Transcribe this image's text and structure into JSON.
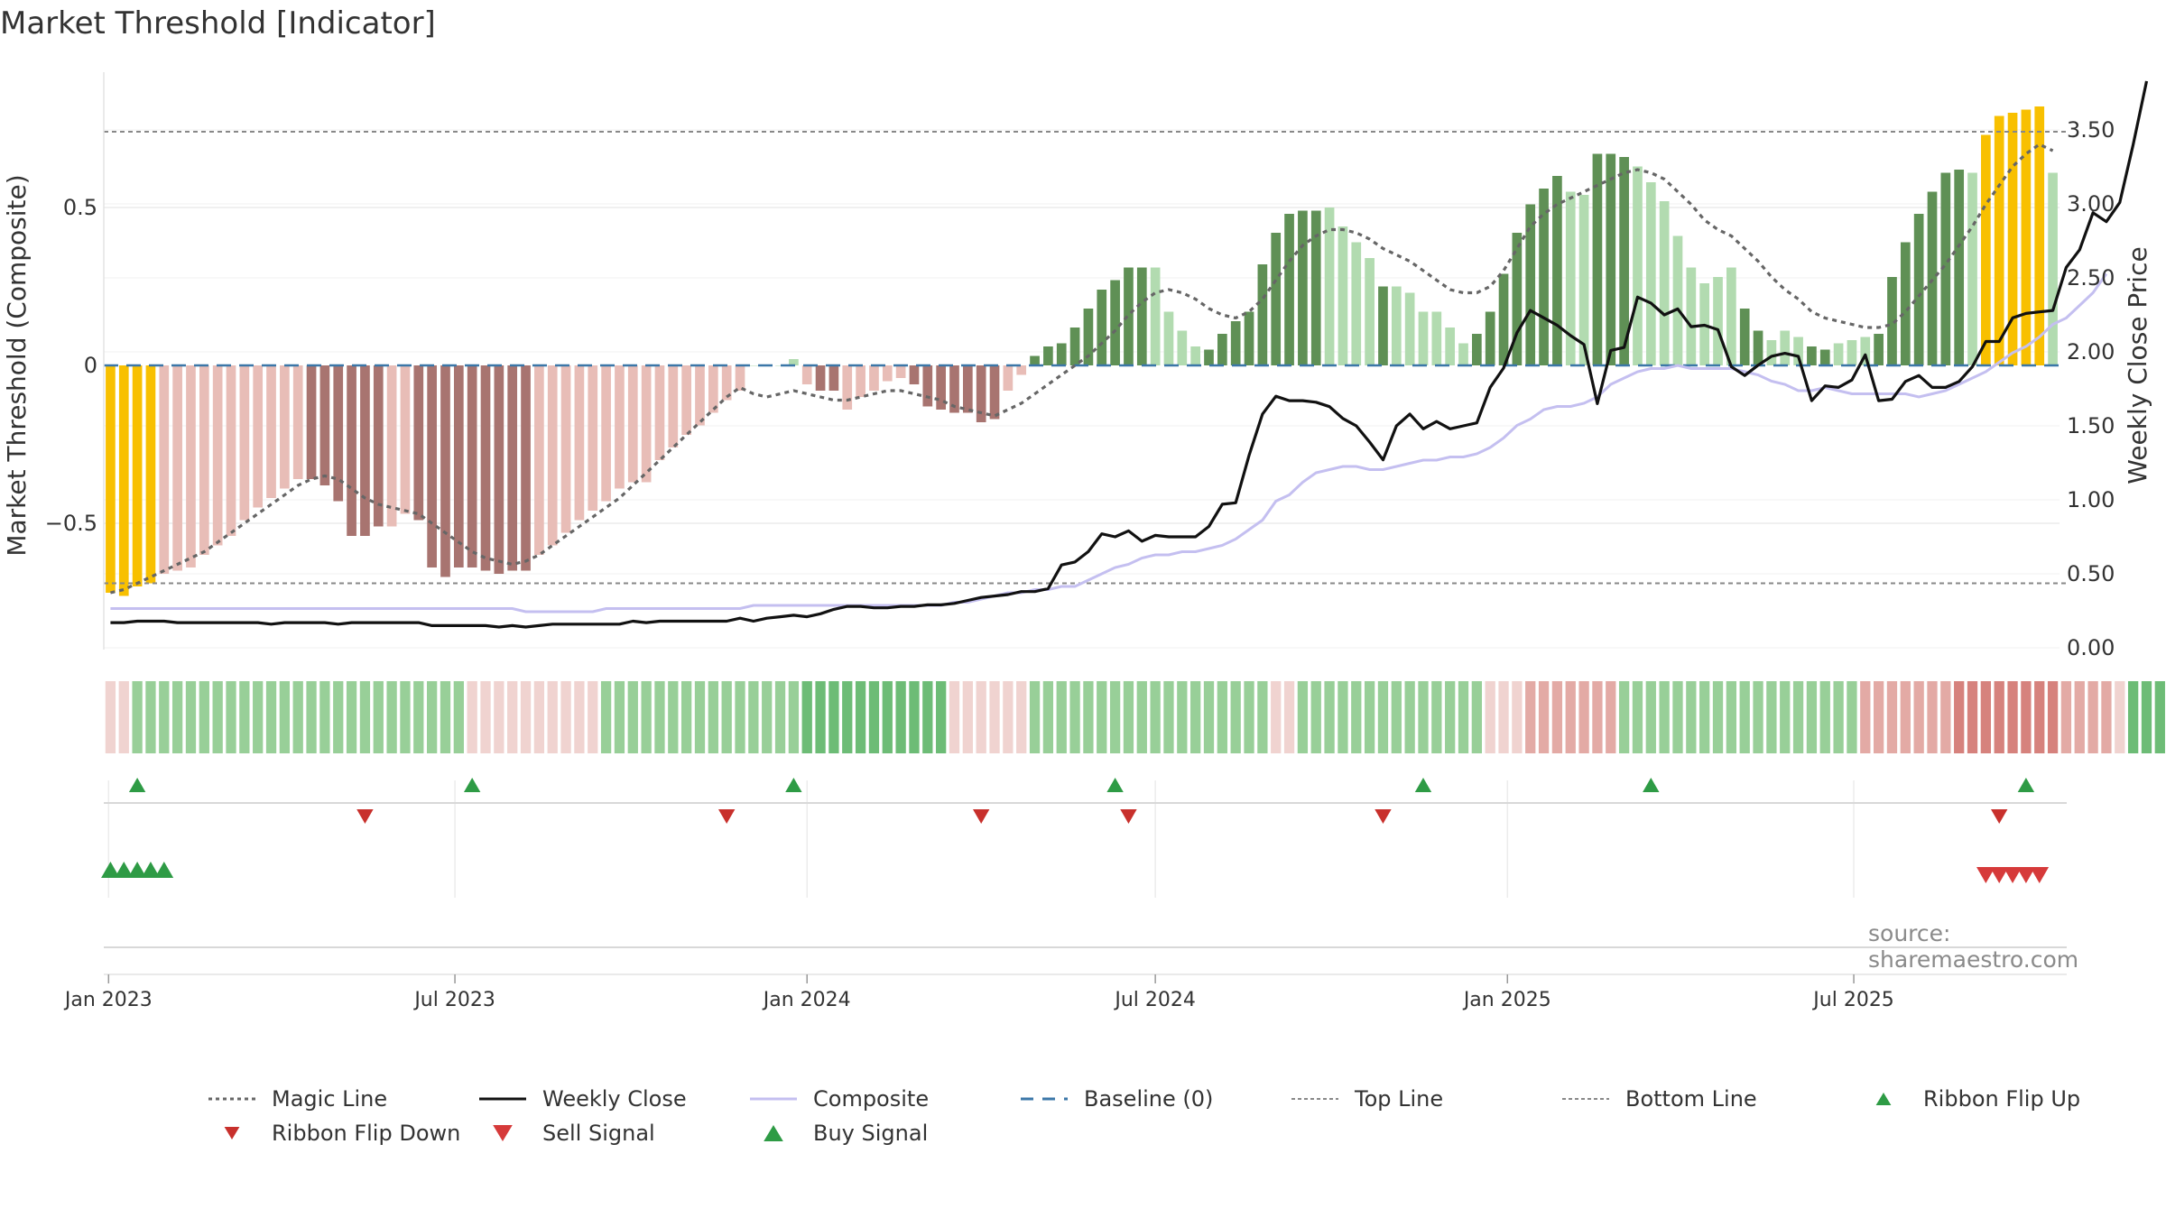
{
  "header": {
    "title": "Market Threshold [Indicator]"
  },
  "source_note": "source: sharemaestro.com",
  "colors": {
    "bar_neg_light": "#e8bdb7",
    "bar_neg_dark": "#a87470",
    "bar_pos_light": "#b2dbb0",
    "bar_pos_dark": "#5f9055",
    "bar_extreme": "#f8c000",
    "magic": "#666666",
    "close": "#111111",
    "composite": "#c4bff0",
    "baseline": "#3b77a8",
    "guide": "#888888",
    "buy": "#2e9b45",
    "sell": "#d63a3a",
    "flip_down": "#c8302c"
  },
  "chart_data": {
    "type": "bar",
    "title": "Market Threshold [Indicator]",
    "x_axis": {
      "ticks": [
        "Jan 2023",
        "Jul 2023",
        "Jan 2024",
        "Jul 2024",
        "Jan 2025",
        "Jul 2025"
      ]
    },
    "y_left": {
      "label": "Market Threshold (Composite)",
      "ticks": [
        "0.5",
        "0",
        "−0.5"
      ],
      "range": [
        -0.89,
        0.92
      ]
    },
    "y_right": {
      "label": "Weekly Close Price",
      "ticks": [
        "3.50",
        "3.00",
        "2.50",
        "2.00",
        "1.50",
        "1.00",
        "0.50",
        "0.00"
      ],
      "range": [
        0,
        3.85
      ]
    },
    "start_date": "2023-01-02",
    "top_line": 0.74,
    "bottom_line": -0.69,
    "baseline": 0,
    "composite_bars": [
      -0.72,
      -0.73,
      -0.7,
      -0.69,
      -0.66,
      -0.65,
      -0.64,
      -0.6,
      -0.57,
      -0.54,
      -0.49,
      -0.45,
      -0.42,
      -0.39,
      -0.36,
      -0.36,
      -0.38,
      -0.43,
      -0.54,
      -0.54,
      -0.51,
      -0.51,
      -0.47,
      -0.49,
      -0.64,
      -0.67,
      -0.64,
      -0.64,
      -0.65,
      -0.66,
      -0.65,
      -0.65,
      -0.6,
      -0.57,
      -0.53,
      -0.49,
      -0.46,
      -0.43,
      -0.39,
      -0.37,
      -0.37,
      -0.3,
      -0.26,
      -0.22,
      -0.19,
      -0.15,
      -0.11,
      -0.08,
      0,
      0,
      0,
      0.02,
      -0.06,
      -0.08,
      -0.08,
      -0.14,
      -0.1,
      -0.08,
      -0.05,
      -0.04,
      -0.06,
      -0.13,
      -0.14,
      -0.15,
      -0.15,
      -0.18,
      -0.17,
      -0.08,
      -0.03,
      0.03,
      0.06,
      0.07,
      0.12,
      0.18,
      0.24,
      0.27,
      0.31,
      0.31,
      0.31,
      0.17,
      0.11,
      0.06,
      0.05,
      0.1,
      0.14,
      0.17,
      0.32,
      0.42,
      0.48,
      0.49,
      0.49,
      0.5,
      0.44,
      0.39,
      0.34,
      0.25,
      0.25,
      0.23,
      0.17,
      0.17,
      0.12,
      0.07,
      0.1,
      0.17,
      0.29,
      0.42,
      0.51,
      0.56,
      0.6,
      0.55,
      0.54,
      0.67,
      0.67,
      0.66,
      0.63,
      0.58,
      0.52,
      0.41,
      0.31,
      0.26,
      0.28,
      0.31,
      0.18,
      0.11,
      0.08,
      0.11,
      0.09,
      0.06,
      0.05,
      0.07,
      0.08,
      0.09,
      0.1,
      0.28,
      0.39,
      0.48,
      0.55,
      0.61,
      0.62,
      0.61,
      0.73,
      0.79,
      0.8,
      0.81,
      0.82,
      0.61
    ],
    "bar_shades": [
      "x",
      "x",
      "x",
      "x",
      "l",
      "l",
      "l",
      "l",
      "l",
      "l",
      "l",
      "l",
      "l",
      "l",
      "l",
      "d",
      "d",
      "d",
      "d",
      "d",
      "d",
      "l",
      "l",
      "d",
      "d",
      "d",
      "d",
      "d",
      "d",
      "d",
      "d",
      "d",
      "l",
      "l",
      "l",
      "l",
      "l",
      "l",
      "l",
      "l",
      "l",
      "l",
      "l",
      "l",
      "l",
      "l",
      "l",
      "l",
      "l",
      "l",
      "l",
      "l",
      "l",
      "d",
      "d",
      "l",
      "l",
      "l",
      "l",
      "l",
      "d",
      "d",
      "d",
      "d",
      "d",
      "d",
      "d",
      "l",
      "l",
      "d",
      "d",
      "d",
      "d",
      "d",
      "d",
      "d",
      "d",
      "d",
      "l",
      "l",
      "l",
      "l",
      "d",
      "d",
      "d",
      "d",
      "d",
      "d",
      "d",
      "d",
      "d",
      "l",
      "l",
      "l",
      "l",
      "d",
      "l",
      "l",
      "l",
      "l",
      "l",
      "l",
      "d",
      "d",
      "d",
      "d",
      "d",
      "d",
      "d",
      "l",
      "l",
      "d",
      "d",
      "d",
      "l",
      "l",
      "l",
      "l",
      "l",
      "l",
      "l",
      "l",
      "d",
      "d",
      "l",
      "l",
      "l",
      "d",
      "d",
      "l",
      "l",
      "l",
      "d",
      "d",
      "d",
      "d",
      "d",
      "d",
      "d",
      "l",
      "x",
      "x",
      "x",
      "x",
      "x",
      "l"
    ],
    "magic_line": [
      -0.72,
      -0.71,
      -0.69,
      -0.67,
      -0.65,
      -0.63,
      -0.61,
      -0.59,
      -0.56,
      -0.53,
      -0.5,
      -0.47,
      -0.44,
      -0.41,
      -0.38,
      -0.36,
      -0.35,
      -0.36,
      -0.39,
      -0.42,
      -0.44,
      -0.45,
      -0.46,
      -0.47,
      -0.5,
      -0.53,
      -0.56,
      -0.59,
      -0.61,
      -0.62,
      -0.63,
      -0.62,
      -0.6,
      -0.57,
      -0.54,
      -0.51,
      -0.48,
      -0.45,
      -0.42,
      -0.38,
      -0.34,
      -0.3,
      -0.26,
      -0.22,
      -0.18,
      -0.14,
      -0.1,
      -0.07,
      -0.09,
      -0.1,
      -0.09,
      -0.08,
      -0.09,
      -0.1,
      -0.11,
      -0.11,
      -0.1,
      -0.09,
      -0.08,
      -0.08,
      -0.09,
      -0.1,
      -0.11,
      -0.13,
      -0.14,
      -0.15,
      -0.16,
      -0.14,
      -0.12,
      -0.09,
      -0.06,
      -0.03,
      0,
      0.03,
      0.07,
      0.11,
      0.16,
      0.2,
      0.23,
      0.24,
      0.23,
      0.21,
      0.18,
      0.16,
      0.15,
      0.17,
      0.21,
      0.27,
      0.33,
      0.38,
      0.41,
      0.43,
      0.43,
      0.42,
      0.4,
      0.37,
      0.35,
      0.33,
      0.3,
      0.27,
      0.24,
      0.23,
      0.23,
      0.25,
      0.3,
      0.37,
      0.44,
      0.48,
      0.51,
      0.53,
      0.55,
      0.57,
      0.59,
      0.61,
      0.62,
      0.61,
      0.59,
      0.55,
      0.51,
      0.46,
      0.43,
      0.41,
      0.37,
      0.33,
      0.28,
      0.24,
      0.21,
      0.17,
      0.15,
      0.14,
      0.13,
      0.12,
      0.12,
      0.13,
      0.17,
      0.22,
      0.27,
      0.32,
      0.38,
      0.44,
      0.51,
      0.57,
      0.63,
      0.67,
      0.7,
      0.68
    ],
    "composite_line": [
      -0.77,
      -0.77,
      -0.77,
      -0.77,
      -0.77,
      -0.77,
      -0.77,
      -0.77,
      -0.77,
      -0.77,
      -0.77,
      -0.77,
      -0.77,
      -0.77,
      -0.77,
      -0.77,
      -0.77,
      -0.77,
      -0.77,
      -0.77,
      -0.77,
      -0.77,
      -0.77,
      -0.77,
      -0.77,
      -0.77,
      -0.77,
      -0.77,
      -0.77,
      -0.77,
      -0.77,
      -0.78,
      -0.78,
      -0.78,
      -0.78,
      -0.78,
      -0.78,
      -0.77,
      -0.77,
      -0.77,
      -0.77,
      -0.77,
      -0.77,
      -0.77,
      -0.77,
      -0.77,
      -0.77,
      -0.77,
      -0.76,
      -0.76,
      -0.76,
      -0.76,
      -0.76,
      -0.76,
      -0.76,
      -0.76,
      -0.76,
      -0.76,
      -0.76,
      -0.76,
      -0.76,
      -0.76,
      -0.76,
      -0.75,
      -0.75,
      -0.74,
      -0.73,
      -0.72,
      -0.72,
      -0.71,
      -0.71,
      -0.7,
      -0.7,
      -0.68,
      -0.66,
      -0.64,
      -0.63,
      -0.61,
      -0.6,
      -0.6,
      -0.59,
      -0.59,
      -0.58,
      -0.57,
      -0.55,
      -0.52,
      -0.49,
      -0.43,
      -0.41,
      -0.37,
      -0.34,
      -0.33,
      -0.32,
      -0.32,
      -0.33,
      -0.33,
      -0.32,
      -0.31,
      -0.3,
      -0.3,
      -0.29,
      -0.29,
      -0.28,
      -0.26,
      -0.23,
      -0.19,
      -0.17,
      -0.14,
      -0.13,
      -0.13,
      -0.12,
      -0.1,
      -0.06,
      -0.04,
      -0.02,
      -0.01,
      -0.01,
      0,
      -0.01,
      -0.01,
      -0.01,
      -0.01,
      -0.02,
      -0.03,
      -0.05,
      -0.06,
      -0.08,
      -0.08,
      -0.07,
      -0.08,
      -0.09,
      -0.09,
      -0.09,
      -0.09,
      -0.09,
      -0.1,
      -0.09,
      -0.08,
      -0.06,
      -0.04,
      -0.02,
      0.01,
      0.04,
      0.06,
      0.09,
      0.13,
      0.15,
      0.19,
      0.23,
      0.29
    ],
    "weekly_close": [
      0.17,
      0.17,
      0.18,
      0.18,
      0.18,
      0.17,
      0.17,
      0.17,
      0.17,
      0.17,
      0.17,
      0.17,
      0.16,
      0.17,
      0.17,
      0.17,
      0.17,
      0.16,
      0.17,
      0.17,
      0.17,
      0.17,
      0.17,
      0.17,
      0.15,
      0.15,
      0.15,
      0.15,
      0.15,
      0.14,
      0.15,
      0.14,
      0.15,
      0.16,
      0.16,
      0.16,
      0.16,
      0.16,
      0.16,
      0.18,
      0.17,
      0.18,
      0.18,
      0.18,
      0.18,
      0.18,
      0.18,
      0.2,
      0.18,
      0.2,
      0.21,
      0.22,
      0.21,
      0.23,
      0.26,
      0.28,
      0.28,
      0.27,
      0.27,
      0.28,
      0.28,
      0.29,
      0.29,
      0.3,
      0.32,
      0.34,
      0.35,
      0.36,
      0.38,
      0.38,
      0.4,
      0.56,
      0.58,
      0.65,
      0.77,
      0.75,
      0.79,
      0.72,
      0.76,
      0.75,
      0.75,
      0.75,
      0.82,
      0.97,
      0.98,
      1.3,
      1.58,
      1.7,
      1.67,
      1.67,
      1.66,
      1.63,
      1.55,
      1.5,
      1.39,
      1.27,
      1.5,
      1.58,
      1.48,
      1.53,
      1.48,
      1.5,
      1.52,
      1.76,
      1.89,
      2.13,
      2.28,
      2.23,
      2.18,
      2.11,
      2.05,
      1.65,
      2.01,
      2.03,
      2.37,
      2.33,
      2.25,
      2.29,
      2.17,
      2.18,
      2.15,
      1.9,
      1.84,
      1.91,
      1.97,
      1.99,
      1.97,
      1.67,
      1.77,
      1.76,
      1.81,
      1.98,
      1.67,
      1.68,
      1.8,
      1.84,
      1.76,
      1.76,
      1.8,
      1.9,
      2.07,
      2.07,
      2.23,
      2.26,
      2.27,
      2.28,
      2.57,
      2.69,
      2.94,
      2.88,
      3.01,
      3.4,
      3.83
    ],
    "ribbon_levels": [
      -1,
      -1,
      1,
      1,
      1,
      1,
      1,
      1,
      1,
      1,
      1,
      1,
      1,
      1,
      1,
      1,
      1,
      1,
      1,
      1,
      1,
      1,
      1,
      1,
      1,
      1,
      1,
      -1,
      -1,
      -1,
      -1,
      -1,
      -1,
      -1,
      -1,
      -1,
      -1,
      1,
      1,
      1,
      1,
      1,
      1,
      1,
      1,
      1,
      1,
      1,
      1,
      1,
      1,
      1,
      2,
      2,
      2,
      2,
      2,
      2,
      2,
      2,
      2,
      2,
      2,
      -1,
      -1,
      -1,
      -1,
      -1,
      -1,
      1,
      1,
      1,
      1,
      1,
      1,
      1,
      1,
      1,
      1,
      1,
      1,
      1,
      1,
      1,
      1,
      1,
      1,
      -1,
      -1,
      1,
      1,
      1,
      1,
      1,
      1,
      1,
      1,
      1,
      1,
      1,
      1,
      1,
      1,
      -1,
      -1,
      -1,
      -2,
      -2,
      -2,
      -2,
      -2,
      -2,
      -2,
      1,
      1,
      1,
      1,
      1,
      1,
      1,
      1,
      1,
      1,
      1,
      1,
      1,
      1,
      1,
      1,
      1,
      1,
      -2,
      -2,
      -2,
      -2,
      -2,
      -2,
      -2,
      -3,
      -3,
      -3,
      -3,
      -3,
      -3,
      -3,
      -3,
      -2,
      -2,
      -2,
      -2,
      -1,
      2,
      2,
      2,
      2,
      2,
      2,
      2,
      2,
      3,
      3,
      3,
      3,
      3,
      3,
      3,
      2
    ],
    "ribbon_flip_up_weeks": [
      2,
      27,
      51,
      75,
      98,
      115,
      143
    ],
    "ribbon_flip_down_weeks": [
      19,
      46,
      65,
      76,
      95,
      141
    ],
    "buy_signal_weeks": [
      0,
      1,
      2,
      3,
      4
    ],
    "sell_signal_weeks": [
      140,
      141,
      142,
      143,
      144
    ],
    "legend": [
      {
        "label": "Magic Line",
        "key": "magic"
      },
      {
        "label": "Weekly Close",
        "key": "close"
      },
      {
        "label": "Composite",
        "key": "composite"
      },
      {
        "label": "Baseline (0)",
        "key": "baseline"
      },
      {
        "label": "Top Line",
        "key": "top"
      },
      {
        "label": "Bottom Line",
        "key": "bottom"
      },
      {
        "label": "Ribbon Flip Up",
        "key": "flipup"
      },
      {
        "label": "Ribbon Flip Down",
        "key": "flipdown"
      },
      {
        "label": "Sell Signal",
        "key": "sell"
      },
      {
        "label": "Buy Signal",
        "key": "buy"
      }
    ]
  }
}
